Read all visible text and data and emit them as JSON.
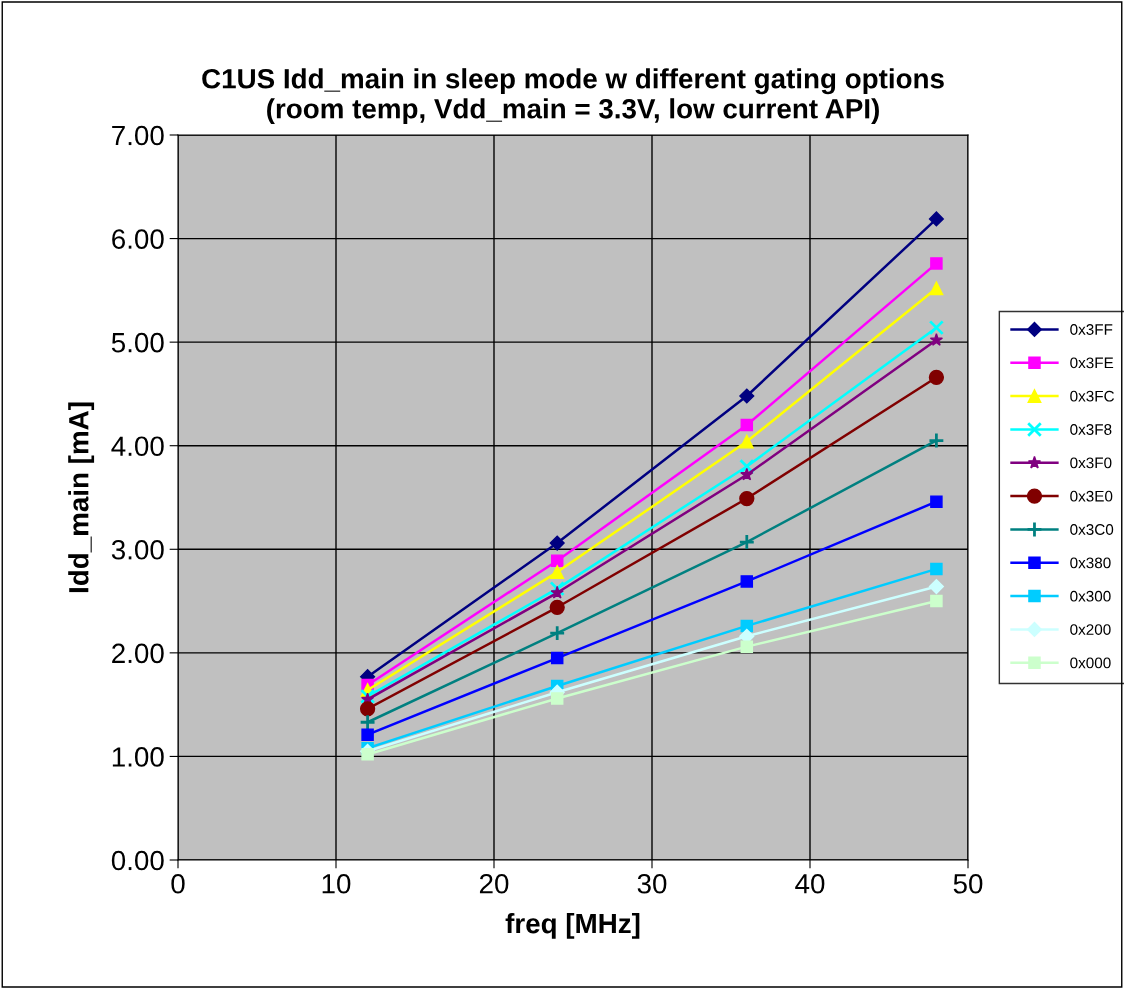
{
  "chart_data": {
    "type": "line",
    "title": "C1US Idd_main in sleep mode w different gating options\n(room temp, Vdd_main = 3.3V, low current API)",
    "xlabel": "freq [MHz]",
    "ylabel": "Idd_main [mA]",
    "x": [
      12,
      24,
      36,
      48
    ],
    "xlim": [
      0,
      50
    ],
    "xticks": [
      0,
      10,
      20,
      30,
      40,
      50
    ],
    "ylim": [
      0,
      7
    ],
    "yticks": [
      {
        "value": 0,
        "label": "0.00"
      },
      {
        "value": 1,
        "label": "1.00"
      },
      {
        "value": 2,
        "label": "2.00"
      },
      {
        "value": 3,
        "label": "3.00"
      },
      {
        "value": 4,
        "label": "4.00"
      },
      {
        "value": 5,
        "label": "5.00"
      },
      {
        "value": 6,
        "label": "6.00"
      },
      {
        "value": 7,
        "label": "7.00"
      }
    ],
    "grid": true,
    "legend": "right",
    "series": [
      {
        "name": "0x3FF",
        "color": "#000080",
        "marker": "diamond",
        "values": [
          1.77,
          3.06,
          4.48,
          6.19
        ]
      },
      {
        "name": "0x3FE",
        "color": "#ff00ff",
        "marker": "square",
        "values": [
          1.69,
          2.89,
          4.2,
          5.76
        ]
      },
      {
        "name": "0x3FC",
        "color": "#ffff00",
        "marker": "triangle",
        "values": [
          1.64,
          2.78,
          4.04,
          5.52
        ]
      },
      {
        "name": "0x3F8",
        "color": "#00ffff",
        "marker": "cross",
        "values": [
          1.58,
          2.62,
          3.8,
          5.14
        ]
      },
      {
        "name": "0x3F0",
        "color": "#800080",
        "marker": "star",
        "values": [
          1.55,
          2.58,
          3.72,
          5.02
        ]
      },
      {
        "name": "0x3E0",
        "color": "#800000",
        "marker": "circle",
        "values": [
          1.46,
          2.44,
          3.49,
          4.66
        ]
      },
      {
        "name": "0x3C0",
        "color": "#008080",
        "marker": "plus",
        "values": [
          1.33,
          2.19,
          3.07,
          4.05
        ]
      },
      {
        "name": "0x380",
        "color": "#0000ff",
        "marker": "square",
        "values": [
          1.21,
          1.95,
          2.69,
          3.46
        ]
      },
      {
        "name": "0x300",
        "color": "#00ccff",
        "marker": "square",
        "values": [
          1.08,
          1.68,
          2.26,
          2.81
        ]
      },
      {
        "name": "0x200",
        "color": "#ccffff",
        "marker": "diamond",
        "values": [
          1.05,
          1.62,
          2.16,
          2.64
        ]
      },
      {
        "name": "0x000",
        "color": "#ccffcc",
        "marker": "square",
        "values": [
          1.02,
          1.56,
          2.06,
          2.5
        ]
      }
    ]
  }
}
